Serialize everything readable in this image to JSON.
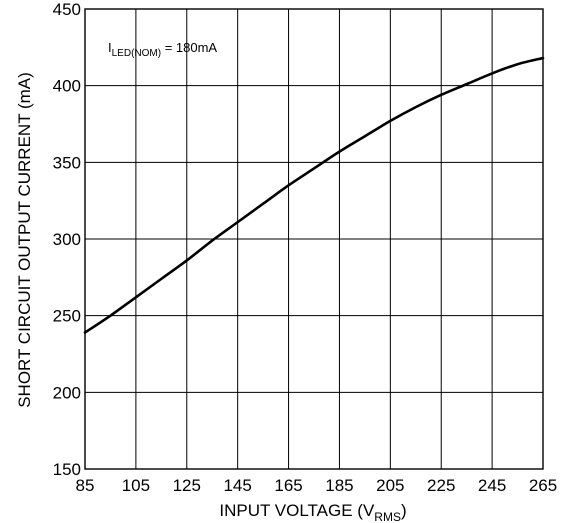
{
  "chart_data": {
    "type": "line",
    "xlabel_main": "INPUT VOLTAGE (V",
    "xlabel_sub": "RMS",
    "xlabel_close": ")",
    "ylabel": "SHORT CIRCUIT OUTPUT CURRENT (mA)",
    "xlim": [
      85,
      265
    ],
    "ylim": [
      150,
      450
    ],
    "x_ticks": [
      85,
      105,
      125,
      145,
      165,
      185,
      205,
      225,
      245,
      265
    ],
    "y_ticks": [
      150,
      200,
      250,
      300,
      350,
      400,
      450
    ],
    "grid": true,
    "annotation": {
      "main": "I",
      "sub": "LED(NOM)",
      "rest": " = 180mA"
    },
    "series": [
      {
        "x": [
          85,
          95,
          105,
          115,
          125,
          135,
          145,
          155,
          165,
          175,
          185,
          195,
          205,
          215,
          225,
          235,
          245,
          255,
          265
        ],
        "y": [
          239,
          250,
          262,
          274,
          286,
          299,
          311,
          323,
          335,
          346,
          357,
          367,
          377,
          386,
          394,
          401,
          408,
          414,
          418
        ]
      }
    ]
  }
}
